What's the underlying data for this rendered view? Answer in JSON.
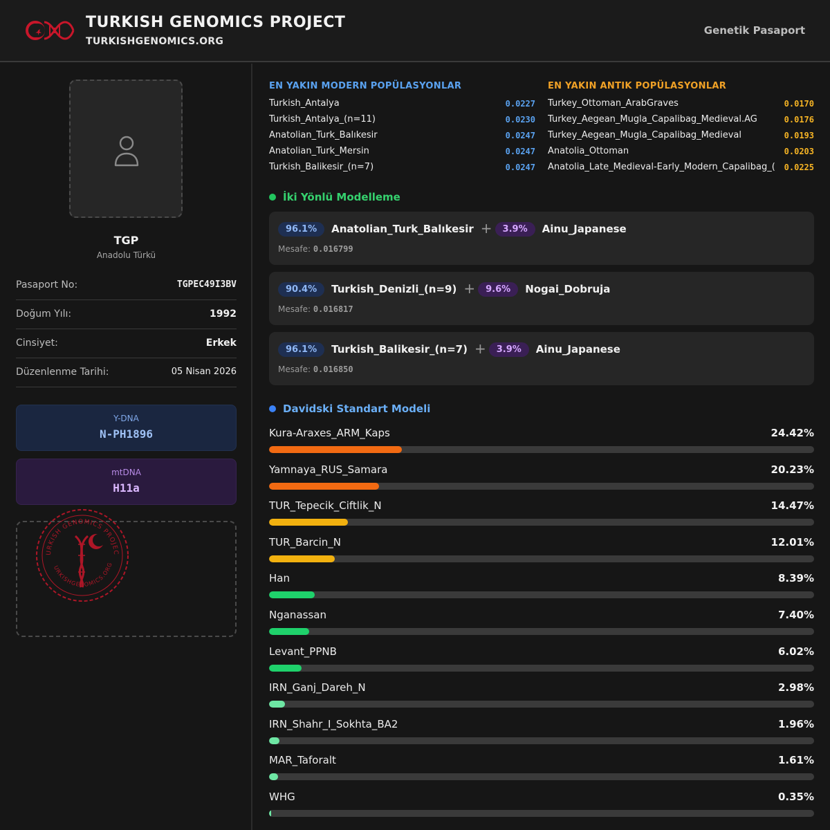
{
  "header": {
    "title": "TURKISH GENOMICS PROJECT",
    "url": "TURKISHGENOMICS.ORG",
    "right_label": "Genetik Pasaport"
  },
  "profile": {
    "name": "TGP",
    "subtitle": "Anadolu Türkü",
    "rows": [
      {
        "label": "Pasaport No:",
        "value": "TGPEC49I3BV"
      },
      {
        "label": "Doğum Yılı:",
        "value": "1992"
      },
      {
        "label": "Cinsiyet:",
        "value": "Erkek"
      },
      {
        "label": "Düzenlenme Tarihi:",
        "value": "05 Nisan 2026"
      }
    ],
    "ydna": {
      "label": "Y-DNA",
      "value": "N-PH1896"
    },
    "mtdna": {
      "label": "mtDNA",
      "value": "H11a"
    },
    "stamp": {
      "top_text": "TURKISH GENOMICS PROJECT",
      "bottom_text": "TURKISHGENOMICS.ORG"
    }
  },
  "modern": {
    "title": "EN YAKIN MODERN POPÜLASYONLAR",
    "items": [
      {
        "name": "Turkish_Antalya",
        "value": "0.0227"
      },
      {
        "name": "Turkish_Antalya_(n=11)",
        "value": "0.0230"
      },
      {
        "name": "Anatolian_Turk_Balıkesir",
        "value": "0.0247"
      },
      {
        "name": "Anatolian_Turk_Mersin",
        "value": "0.0247"
      },
      {
        "name": "Turkish_Balikesir_(n=7)",
        "value": "0.0247"
      }
    ]
  },
  "ancient": {
    "title": "EN YAKIN ANTIK POPÜLASYONLAR",
    "items": [
      {
        "name": "Turkey_Ottoman_ArabGraves",
        "value": "0.0170"
      },
      {
        "name": "Turkey_Aegean_Mugla_Capalibag_Medieval.AG",
        "value": "0.0176"
      },
      {
        "name": "Turkey_Aegean_Mugla_Capalibag_Medieval",
        "value": "0.0193"
      },
      {
        "name": "Anatolia_Ottoman",
        "value": "0.0203"
      },
      {
        "name": "Anatolia_Late_Medieval-Early_Modern_Capalibag_(",
        "value": "0.0225"
      }
    ]
  },
  "two_way": {
    "title": "İki Yönlü Modelleme",
    "distance_label": "Mesafe:",
    "models": [
      {
        "p1": "96.1%",
        "n1": "Anatolian_Turk_Balıkesir",
        "p2": "3.9%",
        "n2": "Ainu_Japanese",
        "dist": "0.016799"
      },
      {
        "p1": "90.4%",
        "n1": "Turkish_Denizli_(n=9)",
        "p2": "9.6%",
        "n2": "Nogai_Dobruja",
        "dist": "0.016817"
      },
      {
        "p1": "96.1%",
        "n1": "Turkish_Balikesir_(n=7)",
        "p2": "3.9%",
        "n2": "Ainu_Japanese",
        "dist": "0.016850"
      }
    ]
  },
  "davidski": {
    "title": "Davidski Standart Modeli",
    "items": [
      {
        "name": "Kura-Araxes_ARM_Kaps",
        "label": "24.42%",
        "value": 24.42,
        "color": "#f26a12"
      },
      {
        "name": "Yamnaya_RUS_Samara",
        "label": "20.23%",
        "value": 20.23,
        "color": "#f26a12"
      },
      {
        "name": "TUR_Tepecik_Ciftlik_N",
        "label": "14.47%",
        "value": 14.47,
        "color": "#f2b10f"
      },
      {
        "name": "TUR_Barcin_N",
        "label": "12.01%",
        "value": 12.01,
        "color": "#f2b10f"
      },
      {
        "name": "Han",
        "label": "8.39%",
        "value": 8.39,
        "color": "#1fd16b"
      },
      {
        "name": "Nganassan",
        "label": "7.40%",
        "value": 7.4,
        "color": "#1fd16b"
      },
      {
        "name": "Levant_PPNB",
        "label": "6.02%",
        "value": 6.02,
        "color": "#1fd16b"
      },
      {
        "name": "IRN_Ganj_Dareh_N",
        "label": "2.98%",
        "value": 2.98,
        "color": "#6ee7a4"
      },
      {
        "name": "IRN_Shahr_I_Sokhta_BA2",
        "label": "1.96%",
        "value": 1.96,
        "color": "#6ee7a4"
      },
      {
        "name": "MAR_Taforalt",
        "label": "1.61%",
        "value": 1.61,
        "color": "#6ee7a4"
      },
      {
        "name": "WHG",
        "label": "0.35%",
        "value": 0.35,
        "color": "#6ee7a4"
      }
    ]
  }
}
